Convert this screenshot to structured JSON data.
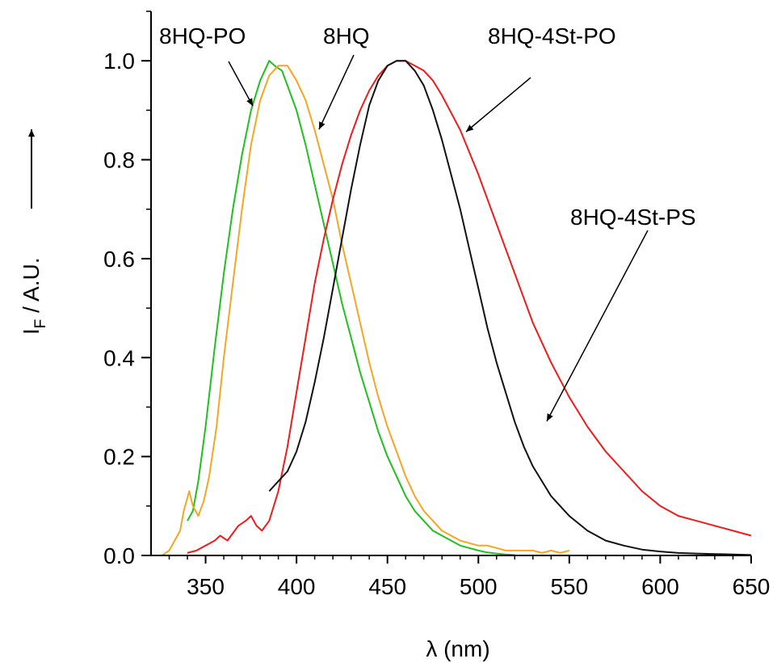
{
  "chart_data": {
    "type": "line",
    "title": "",
    "xlabel": "λ (nm)",
    "ylabel": "I",
    "ylabel_sub": "F",
    "ylabel_suffix": " / A.U.",
    "xlim": [
      320,
      650
    ],
    "ylim": [
      0,
      1.1
    ],
    "xticks": [
      350,
      400,
      450,
      500,
      550,
      600,
      650
    ],
    "yticks": [
      "0.0",
      "0.2",
      "0.4",
      "0.6",
      "0.8",
      "1.0"
    ],
    "grid": false,
    "series": [
      {
        "name": "8HQ-PO",
        "color": "#1fc01f",
        "x": [
          340,
          343,
          346,
          350,
          355,
          360,
          365,
          370,
          375,
          380,
          385,
          388,
          392,
          395,
          400,
          405,
          410,
          415,
          420,
          425,
          430,
          435,
          440,
          445,
          450,
          455,
          460,
          465,
          470,
          475,
          480,
          485,
          490,
          495,
          500,
          505,
          510,
          515,
          520
        ],
        "y": [
          0.07,
          0.09,
          0.15,
          0.26,
          0.42,
          0.57,
          0.7,
          0.81,
          0.9,
          0.96,
          1.0,
          0.99,
          0.98,
          0.95,
          0.9,
          0.83,
          0.75,
          0.67,
          0.59,
          0.51,
          0.44,
          0.37,
          0.31,
          0.25,
          0.2,
          0.16,
          0.12,
          0.09,
          0.07,
          0.05,
          0.04,
          0.03,
          0.02,
          0.015,
          0.01,
          0.006,
          0.004,
          0.002,
          0.001
        ]
      },
      {
        "name": "8HQ",
        "color": "#f5a623",
        "x": [
          322,
          326,
          330,
          333,
          336,
          338,
          341,
          343,
          346,
          349,
          352,
          356,
          360,
          365,
          370,
          375,
          380,
          385,
          390,
          395,
          400,
          405,
          410,
          415,
          420,
          425,
          430,
          435,
          440,
          445,
          450,
          455,
          460,
          465,
          470,
          475,
          480,
          485,
          490,
          495,
          500,
          505,
          510,
          515,
          520,
          525,
          530,
          535,
          540,
          545,
          550
        ],
        "y": [
          0.0,
          0.0,
          0.01,
          0.03,
          0.05,
          0.09,
          0.13,
          0.1,
          0.08,
          0.11,
          0.16,
          0.26,
          0.4,
          0.55,
          0.7,
          0.83,
          0.92,
          0.97,
          0.99,
          0.99,
          0.96,
          0.92,
          0.86,
          0.79,
          0.72,
          0.63,
          0.55,
          0.47,
          0.39,
          0.32,
          0.26,
          0.21,
          0.16,
          0.12,
          0.09,
          0.07,
          0.05,
          0.04,
          0.03,
          0.025,
          0.02,
          0.02,
          0.015,
          0.01,
          0.01,
          0.01,
          0.01,
          0.005,
          0.01,
          0.005,
          0.01
        ]
      },
      {
        "name": "8HQ-4St-PO",
        "color": "#ee1c1c",
        "x": [
          340,
          345,
          350,
          355,
          358,
          362,
          366,
          368,
          372,
          375,
          378,
          381,
          385,
          390,
          395,
          400,
          405,
          410,
          415,
          420,
          425,
          430,
          435,
          440,
          445,
          450,
          455,
          460,
          465,
          470,
          475,
          480,
          490,
          500,
          510,
          520,
          530,
          540,
          550,
          560,
          570,
          580,
          590,
          600,
          610,
          620,
          630,
          640,
          650
        ],
        "y": [
          0.005,
          0.01,
          0.02,
          0.03,
          0.04,
          0.03,
          0.05,
          0.06,
          0.07,
          0.08,
          0.06,
          0.05,
          0.07,
          0.13,
          0.22,
          0.33,
          0.44,
          0.55,
          0.64,
          0.72,
          0.79,
          0.85,
          0.9,
          0.94,
          0.97,
          0.99,
          1.0,
          1.0,
          0.99,
          0.98,
          0.96,
          0.93,
          0.86,
          0.77,
          0.67,
          0.57,
          0.47,
          0.39,
          0.32,
          0.26,
          0.21,
          0.17,
          0.13,
          0.1,
          0.08,
          0.07,
          0.06,
          0.05,
          0.04
        ]
      },
      {
        "name": "8HQ-4St-PS",
        "color": "#111111",
        "x": [
          385,
          390,
          395,
          400,
          405,
          410,
          415,
          420,
          425,
          430,
          435,
          440,
          445,
          450,
          455,
          460,
          465,
          470,
          475,
          480,
          485,
          490,
          495,
          500,
          505,
          510,
          515,
          520,
          525,
          530,
          540,
          550,
          560,
          570,
          580,
          590,
          600,
          610,
          620,
          630,
          640,
          650
        ],
        "y": [
          0.13,
          0.15,
          0.17,
          0.21,
          0.27,
          0.35,
          0.44,
          0.54,
          0.64,
          0.74,
          0.83,
          0.91,
          0.96,
          0.99,
          1.0,
          1.0,
          0.98,
          0.95,
          0.9,
          0.84,
          0.77,
          0.7,
          0.62,
          0.54,
          0.46,
          0.39,
          0.33,
          0.27,
          0.22,
          0.18,
          0.12,
          0.08,
          0.05,
          0.03,
          0.02,
          0.012,
          0.008,
          0.005,
          0.004,
          0.003,
          0.002,
          0.001
        ]
      }
    ],
    "annotations": [
      {
        "text": "8HQ-PO",
        "arrow_to": [
          375,
          0.9
        ]
      },
      {
        "text": "8HQ",
        "arrow_to": [
          410,
          0.86
        ]
      },
      {
        "text": "8HQ-4St-PO",
        "arrow_to": [
          478,
          0.86
        ]
      },
      {
        "text": "8HQ-4St-PS",
        "arrow_to": [
          533,
          0.27
        ]
      }
    ]
  }
}
